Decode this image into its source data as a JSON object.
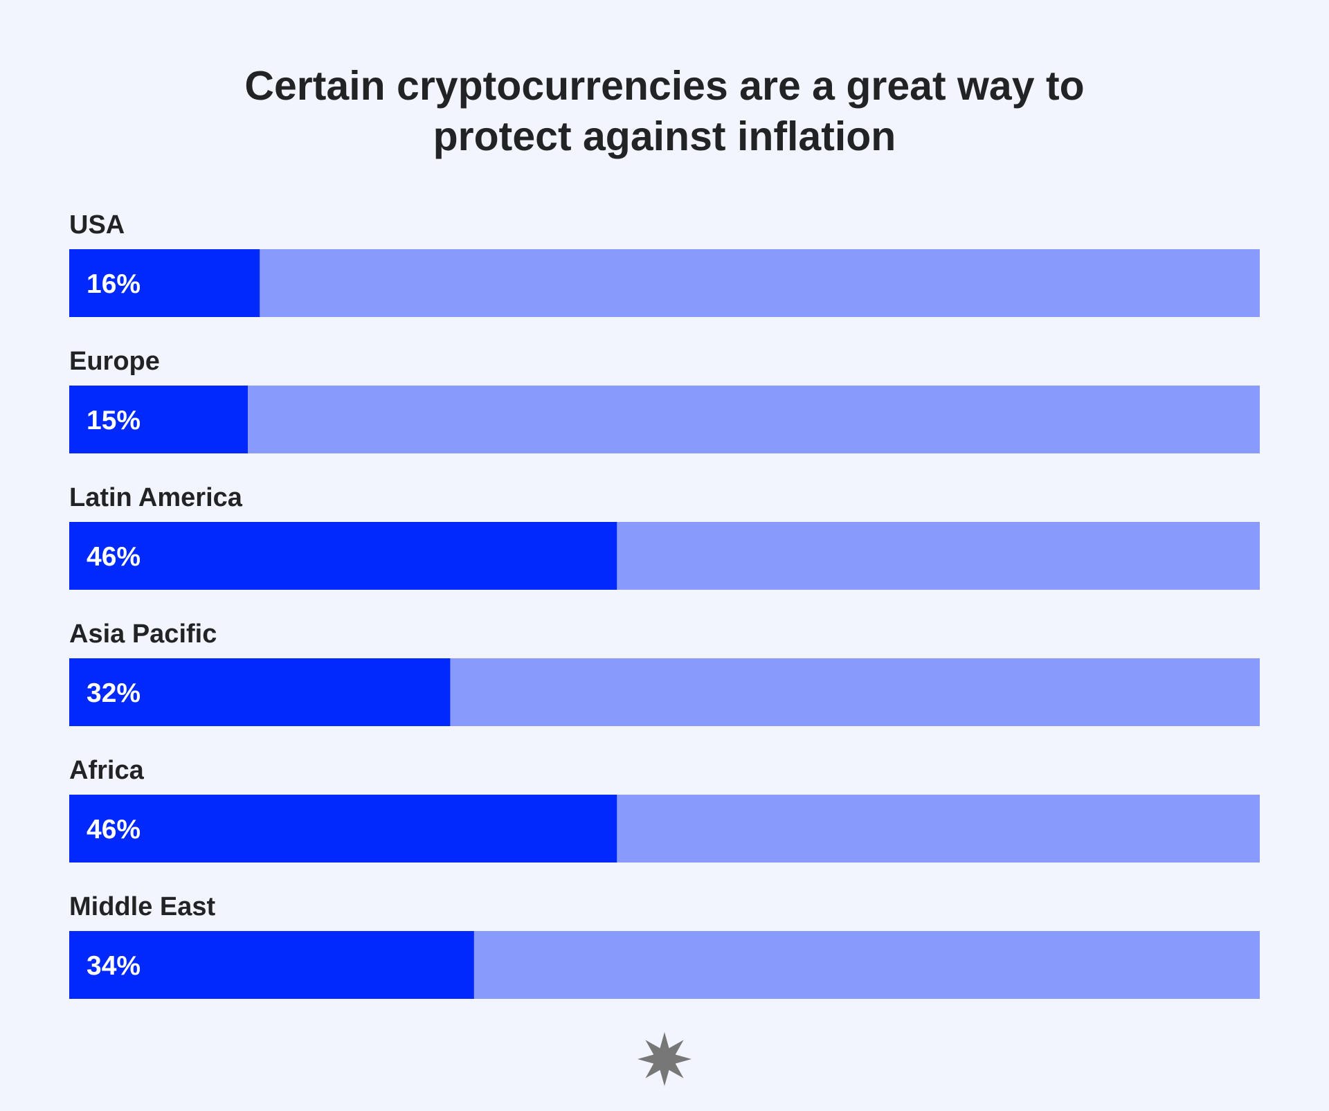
{
  "colors": {
    "background": "#F2F5FE",
    "bar_fill": "#0229FC",
    "bar_track": "#889AFC",
    "text": "#222325",
    "value_text": "#FFFFFF",
    "logo": "#777777"
  },
  "logo": {
    "icon": "starburst-icon"
  },
  "chart_data": {
    "type": "bar",
    "orientation": "horizontal",
    "title_lines": [
      "Certain cryptocurrencies are a great way to",
      "protect against inflation"
    ],
    "categories": [
      "USA",
      "Europe",
      "Latin America",
      "Asia Pacific",
      "Africa",
      "Middle East"
    ],
    "values": [
      16,
      15,
      46,
      32,
      46,
      34
    ],
    "value_labels": [
      "16%",
      "15%",
      "46%",
      "32%",
      "46%",
      "34%"
    ],
    "unit": "%",
    "xlim": [
      0,
      100
    ],
    "grid": false,
    "legend": "none"
  }
}
